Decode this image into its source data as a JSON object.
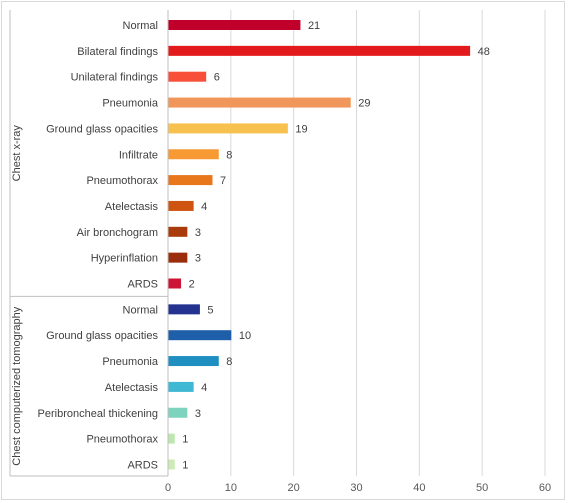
{
  "chart_data": {
    "type": "bar",
    "orientation": "horizontal",
    "title": "",
    "xlabel": "",
    "ylabel": "",
    "xlim": [
      0,
      60
    ],
    "xticks": [
      0,
      10,
      20,
      30,
      40,
      50,
      60
    ],
    "grid": true,
    "legend": "none",
    "groups": [
      {
        "label": "Chest x-ray",
        "items": [
          {
            "label": "Normal",
            "value": 21,
            "color": "#c0002a"
          },
          {
            "label": "Bilateral findings",
            "value": 48,
            "color": "#e31a1c"
          },
          {
            "label": "Unilateral findings",
            "value": 6,
            "color": "#f84f38"
          },
          {
            "label": "Pneumonia",
            "value": 29,
            "color": "#f0965a"
          },
          {
            "label": "Ground glass opacities",
            "value": 19,
            "color": "#f7c150"
          },
          {
            "label": "Infiltrate",
            "value": 8,
            "color": "#f79a33"
          },
          {
            "label": "Pneumothorax",
            "value": 7,
            "color": "#e8761b"
          },
          {
            "label": "Atelectasis",
            "value": 4,
            "color": "#cf5412"
          },
          {
            "label": "Air bronchogram",
            "value": 3,
            "color": "#a83a0c"
          },
          {
            "label": "Hyperinflation",
            "value": 3,
            "color": "#9a2e0c"
          },
          {
            "label": "ARDS",
            "value": 2,
            "color": "#cc1536"
          }
        ]
      },
      {
        "label": "Chest computerized tomography",
        "items": [
          {
            "label": "Normal",
            "value": 5,
            "color": "#24338f"
          },
          {
            "label": "Ground glass opacities",
            "value": 10,
            "color": "#1f5ea8"
          },
          {
            "label": "Pneumonia",
            "value": 8,
            "color": "#1f8fc2"
          },
          {
            "label": "Atelectasis",
            "value": 4,
            "color": "#3fb8d3"
          },
          {
            "label": "Peribroncheal thickening",
            "value": 3,
            "color": "#7dd3bd"
          },
          {
            "label": "Pneumothorax",
            "value": 1,
            "color": "#bfe6b0"
          },
          {
            "label": "ARDS",
            "value": 1,
            "color": "#cdebb6"
          }
        ]
      }
    ]
  }
}
